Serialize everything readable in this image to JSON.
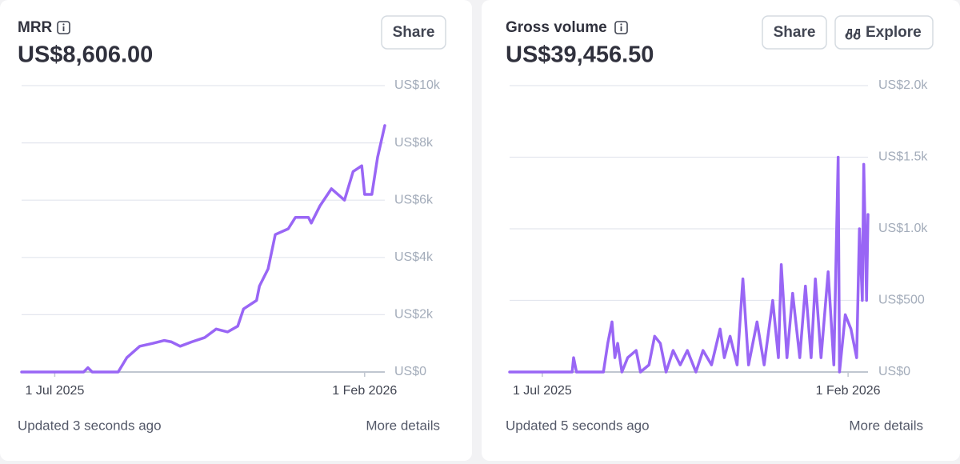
{
  "chart_data": [
    {
      "type": "line",
      "title": "MRR",
      "subtitle": "US$8,606.00",
      "actions": [
        "Share"
      ],
      "updated": "Updated 3 seconds ago",
      "link": "More details",
      "color": "#9966f5",
      "grid": true,
      "x": [
        "2025-06-08",
        "2025-07-13",
        "2025-07-21",
        "2025-07-24",
        "2025-07-27",
        "2025-08-14",
        "2025-08-20",
        "2025-08-29",
        "2025-09-07",
        "2025-09-15",
        "2025-09-20",
        "2025-09-26",
        "2025-10-04",
        "2025-10-13",
        "2025-10-21",
        "2025-10-29",
        "2025-11-05",
        "2025-11-09",
        "2025-11-18",
        "2025-11-20",
        "2025-11-26",
        "2025-12-01",
        "2025-12-10",
        "2025-12-15",
        "2025-12-24",
        "2025-12-26",
        "2026-01-01",
        "2026-01-09",
        "2026-01-18",
        "2026-01-24",
        "2026-01-30",
        "2026-02-01",
        "2026-02-06",
        "2026-02-10",
        "2026-02-15"
      ],
      "values": [
        0,
        0,
        0,
        150,
        0,
        0,
        500,
        900,
        1000,
        1100,
        1050,
        900,
        1050,
        1200,
        1500,
        1400,
        1600,
        2200,
        2500,
        3000,
        3600,
        4800,
        5000,
        5400,
        5400,
        5200,
        5800,
        6400,
        6000,
        7000,
        7200,
        6200,
        6200,
        7500,
        8606
      ],
      "xlim": [
        "2025-06-08",
        "2026-02-15"
      ],
      "xticks": [
        {
          "value": "2025-07-01",
          "label": "1 Jul 2025"
        },
        {
          "value": "2026-02-01",
          "label": "1 Feb 2026"
        }
      ],
      "ylim": [
        0,
        10000
      ],
      "yticks": [
        {
          "value": 0,
          "label": "US$0"
        },
        {
          "value": 2000,
          "label": "US$2k"
        },
        {
          "value": 4000,
          "label": "US$4k"
        },
        {
          "value": 6000,
          "label": "US$6k"
        },
        {
          "value": 8000,
          "label": "US$8k"
        },
        {
          "value": 10000,
          "label": "US$10k"
        }
      ]
    },
    {
      "type": "line",
      "title": "Gross volume",
      "subtitle": "US$39,456.50",
      "actions": [
        "Share",
        "Explore"
      ],
      "updated": "Updated 5 seconds ago",
      "link": "More details",
      "color": "#9966f5",
      "grid": true,
      "x": [
        "2025-06-08",
        "2025-07-22",
        "2025-07-23",
        "2025-07-25",
        "2025-08-13",
        "2025-08-16",
        "2025-08-19",
        "2025-08-21",
        "2025-08-23",
        "2025-08-26",
        "2025-08-30",
        "2025-09-05",
        "2025-09-08",
        "2025-09-14",
        "2025-09-18",
        "2025-09-22",
        "2025-09-26",
        "2025-10-01",
        "2025-10-06",
        "2025-10-11",
        "2025-10-17",
        "2025-10-22",
        "2025-10-28",
        "2025-11-03",
        "2025-11-06",
        "2025-11-10",
        "2025-11-15",
        "2025-11-19",
        "2025-11-23",
        "2025-11-29",
        "2025-12-04",
        "2025-12-10",
        "2025-12-14",
        "2025-12-16",
        "2025-12-20",
        "2025-12-24",
        "2025-12-29",
        "2026-01-02",
        "2026-01-06",
        "2026-01-09",
        "2026-01-13",
        "2026-01-18",
        "2026-01-22",
        "2026-01-25",
        "2026-01-26",
        "2026-01-30",
        "2026-02-03",
        "2026-02-07",
        "2026-02-09",
        "2026-02-11",
        "2026-02-12",
        "2026-02-14",
        "2026-02-15"
      ],
      "values": [
        0,
        0,
        100,
        0,
        0,
        200,
        350,
        100,
        200,
        0,
        100,
        150,
        0,
        50,
        250,
        200,
        0,
        150,
        50,
        150,
        0,
        150,
        50,
        300,
        100,
        250,
        50,
        650,
        50,
        350,
        50,
        500,
        100,
        750,
        100,
        550,
        100,
        600,
        100,
        650,
        100,
        700,
        50,
        1500,
        0,
        400,
        300,
        100,
        1000,
        500,
        1450,
        500,
        1100
      ],
      "xlim": [
        "2025-06-08",
        "2026-02-15"
      ],
      "xticks": [
        {
          "value": "2025-07-01",
          "label": "1 Jul 2025"
        },
        {
          "value": "2026-02-01",
          "label": "1 Feb 2026"
        }
      ],
      "ylim": [
        0,
        2000
      ],
      "yticks": [
        {
          "value": 0,
          "label": "US$0"
        },
        {
          "value": 500,
          "label": "US$500"
        },
        {
          "value": 1000,
          "label": "US$1.0k"
        },
        {
          "value": 1500,
          "label": "US$1.5k"
        },
        {
          "value": 2000,
          "label": "US$2.0k"
        }
      ]
    }
  ]
}
